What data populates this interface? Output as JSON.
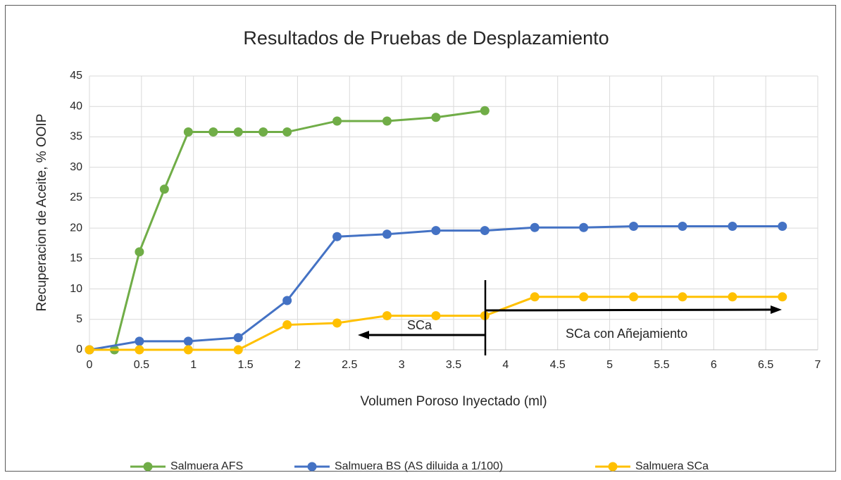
{
  "chart_data": {
    "type": "line",
    "title": "Resultados de Pruebas de Desplazamiento",
    "x_label": "Volumen Poroso Inyectado (ml)",
    "y_label": "Recuperacion de Aceite, % OOIP",
    "xlim": [
      0,
      7
    ],
    "xticks": [
      0,
      0.5,
      1,
      1.5,
      2,
      2.5,
      3,
      3.5,
      4,
      4.5,
      5,
      5.5,
      6,
      6.5,
      7
    ],
    "ylim": [
      0,
      45
    ],
    "yticks": [
      0,
      5,
      10,
      15,
      20,
      25,
      30,
      35,
      40,
      45
    ],
    "grid": true,
    "legend": "bottom",
    "series": [
      {
        "name": "Salmuera AFS",
        "color": "#70ad47",
        "x": [
          0,
          0.24,
          0.48,
          0.72,
          0.95,
          1.19,
          1.43,
          1.67,
          1.9,
          2.38,
          2.86,
          3.33,
          3.8
        ],
        "values": [
          0,
          0,
          16.1,
          26.4,
          35.8,
          35.8,
          35.8,
          35.8,
          35.8,
          37.6,
          37.6,
          38.2,
          39.3
        ]
      },
      {
        "name": "Salmuera BS (AS diluida a 1/100)",
        "color": "#4472c4",
        "x": [
          0,
          0.48,
          0.95,
          1.43,
          1.9,
          2.38,
          2.86,
          3.33,
          3.8,
          4.28,
          4.75,
          5.23,
          5.7,
          6.18,
          6.66
        ],
        "values": [
          0,
          1.4,
          1.4,
          2.0,
          8.1,
          18.6,
          19.0,
          19.6,
          19.6,
          20.1,
          20.1,
          20.3,
          20.3,
          20.3,
          20.3
        ]
      },
      {
        "name": "Salmuera SCa",
        "color": "#ffc000",
        "x": [
          0,
          0.48,
          0.95,
          1.43,
          1.9,
          2.38,
          2.86,
          3.33,
          3.8,
          4.28,
          4.75,
          5.23,
          5.7,
          6.18,
          6.66
        ],
        "values": [
          0,
          0,
          0,
          0,
          4.1,
          4.4,
          5.6,
          5.6,
          5.6,
          8.7,
          8.7,
          8.7,
          8.7,
          8.7,
          8.7
        ]
      }
    ],
    "annotations": [
      "SCa",
      "SCa con Añejamiento"
    ]
  }
}
